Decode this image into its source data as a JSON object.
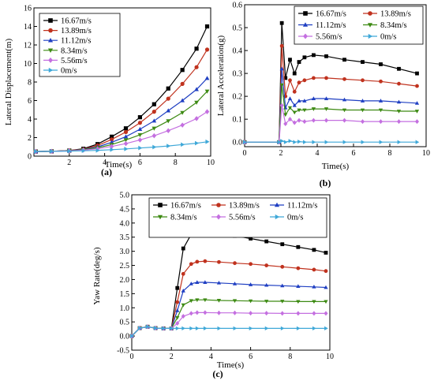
{
  "legend_labels": [
    "16.67m/s",
    "13.89m/s",
    "11.12m/s",
    "8.34m/s",
    "5.56m/s",
    "0m/s"
  ],
  "colors": {
    "16.67m/s": "#000000",
    "13.89m/s": "#c0321e",
    "11.12m/s": "#1f3fc2",
    "8.34m/s": "#3d8a13",
    "5.56m/s": "#c46fe0",
    "0m/s": "#3fa8d8"
  },
  "markers": {
    "16.67m/s": "square",
    "13.89m/s": "circle",
    "11.12m/s": "triangle-up",
    "8.34m/s": "triangle-down",
    "5.56m/s": "diamond",
    "0m/s": "triangle-right"
  },
  "chart_data": [
    {
      "type": "line",
      "panel_label": "(a)",
      "title": "",
      "xlabel": "Time(s)",
      "ylabel": "Lateral Displacement(m)",
      "xlim": [
        0,
        10
      ],
      "ylim": [
        0,
        16
      ],
      "xticks": [
        "2",
        "4",
        "6",
        "8",
        "10"
      ],
      "yticks": [
        "0",
        "2",
        "4",
        "6",
        "8",
        "10",
        "12",
        "14",
        "16"
      ],
      "legend_position": "top-left",
      "x": [
        0.1,
        1.0,
        2.0,
        2.8,
        3.6,
        4.4,
        5.2,
        6.0,
        6.8,
        7.6,
        8.4,
        9.2,
        9.8
      ],
      "series": [
        {
          "name": "16.67m/s",
          "values": [
            0.5,
            0.52,
            0.6,
            0.8,
            1.3,
            2.1,
            3.0,
            4.2,
            5.6,
            7.3,
            9.3,
            11.6,
            14.0
          ]
        },
        {
          "name": "13.89m/s",
          "values": [
            0.5,
            0.52,
            0.6,
            0.75,
            1.15,
            1.8,
            2.6,
            3.6,
            4.8,
            6.2,
            7.8,
            9.6,
            11.5
          ]
        },
        {
          "name": "11.12m/s",
          "values": [
            0.5,
            0.52,
            0.58,
            0.72,
            1.0,
            1.5,
            2.1,
            2.9,
            3.8,
            4.9,
            6.0,
            7.2,
            8.4
          ]
        },
        {
          "name": "8.34m/s",
          "values": [
            0.5,
            0.52,
            0.58,
            0.7,
            0.9,
            1.25,
            1.75,
            2.3,
            3.0,
            3.8,
            4.7,
            5.8,
            7.0
          ]
        },
        {
          "name": "5.56m/s",
          "values": [
            0.5,
            0.52,
            0.56,
            0.65,
            0.8,
            1.05,
            1.35,
            1.75,
            2.2,
            2.75,
            3.35,
            4.05,
            4.8
          ]
        },
        {
          "name": "0m/s",
          "values": [
            0.5,
            0.52,
            0.54,
            0.58,
            0.62,
            0.7,
            0.78,
            0.88,
            0.98,
            1.1,
            1.25,
            1.4,
            1.55
          ]
        }
      ]
    },
    {
      "type": "line",
      "panel_label": "(b)",
      "title": "",
      "xlabel": "Time(s)",
      "ylabel": "Lateral Acceleration(g)",
      "xlim": [
        0,
        10
      ],
      "ylim": [
        -0.02,
        0.6
      ],
      "xticks": [
        "0",
        "2",
        "4",
        "6",
        "8",
        "10"
      ],
      "yticks": [
        "0.0",
        "0.1",
        "0.2",
        "0.3",
        "0.4",
        "0.5",
        "0.6"
      ],
      "legend_position": "top-right",
      "x": [
        0,
        1.9,
        2.05,
        2.25,
        2.5,
        2.75,
        3.0,
        3.3,
        3.8,
        4.5,
        5.5,
        6.5,
        7.5,
        8.5,
        9.5
      ],
      "series": [
        {
          "name": "16.67m/s",
          "values": [
            0,
            0,
            0.52,
            0.28,
            0.36,
            0.3,
            0.35,
            0.37,
            0.38,
            0.375,
            0.36,
            0.35,
            0.34,
            0.32,
            0.3
          ]
        },
        {
          "name": "13.89m/s",
          "values": [
            0,
            0,
            0.42,
            0.2,
            0.27,
            0.22,
            0.26,
            0.27,
            0.28,
            0.28,
            0.275,
            0.27,
            0.265,
            0.255,
            0.245
          ]
        },
        {
          "name": "11.12m/s",
          "values": [
            0,
            0,
            0.32,
            0.15,
            0.19,
            0.16,
            0.18,
            0.18,
            0.19,
            0.19,
            0.185,
            0.18,
            0.18,
            0.175,
            0.17
          ]
        },
        {
          "name": "8.34m/s",
          "values": [
            0,
            0,
            0.25,
            0.12,
            0.15,
            0.13,
            0.14,
            0.14,
            0.145,
            0.145,
            0.14,
            0.14,
            0.14,
            0.135,
            0.135
          ]
        },
        {
          "name": "5.56m/s",
          "values": [
            0,
            0,
            0.16,
            0.08,
            0.1,
            0.085,
            0.095,
            0.09,
            0.095,
            0.095,
            0.095,
            0.09,
            0.09,
            0.09,
            0.09
          ]
        },
        {
          "name": "0m/s",
          "values": [
            0,
            0,
            0.005,
            0.0,
            0.005,
            0.0,
            0.002,
            0.0,
            0.0,
            0.0,
            0.0,
            0.0,
            0.0,
            0.0,
            0.0
          ]
        }
      ]
    },
    {
      "type": "line",
      "panel_label": "(c)",
      "title": "",
      "xlabel": "Time(s)",
      "ylabel": "Yaw Rate(deg/s)",
      "xlim": [
        0,
        10
      ],
      "ylim": [
        -0.5,
        5.0
      ],
      "xticks": [
        "0",
        "2",
        "4",
        "6",
        "8",
        "10"
      ],
      "yticks": [
        "-0.5",
        "0.0",
        "0.5",
        "1.0",
        "1.5",
        "2.0",
        "2.5",
        "3.0",
        "3.5",
        "4.0",
        "4.5",
        "5.0"
      ],
      "legend_position": "top",
      "x": [
        0.0,
        0.4,
        0.8,
        1.2,
        1.6,
        2.0,
        2.3,
        2.6,
        3.0,
        3.3,
        3.7,
        4.4,
        5.2,
        6.0,
        6.8,
        7.6,
        8.4,
        9.2,
        9.8
      ],
      "series": [
        {
          "name": "16.67m/s",
          "values": [
            0.0,
            0.28,
            0.33,
            0.28,
            0.27,
            0.27,
            1.7,
            3.1,
            3.6,
            3.7,
            3.68,
            3.6,
            3.55,
            3.45,
            3.35,
            3.25,
            3.15,
            3.05,
            2.95
          ]
        },
        {
          "name": "13.89m/s",
          "values": [
            0.0,
            0.28,
            0.33,
            0.28,
            0.27,
            0.27,
            1.2,
            2.2,
            2.55,
            2.63,
            2.65,
            2.62,
            2.58,
            2.55,
            2.5,
            2.45,
            2.4,
            2.35,
            2.3
          ]
        },
        {
          "name": "11.12m/s",
          "values": [
            0.0,
            0.28,
            0.33,
            0.28,
            0.27,
            0.27,
            0.9,
            1.6,
            1.85,
            1.9,
            1.9,
            1.88,
            1.85,
            1.82,
            1.8,
            1.78,
            1.76,
            1.74,
            1.72
          ]
        },
        {
          "name": "8.34m/s",
          "values": [
            0.0,
            0.28,
            0.33,
            0.28,
            0.27,
            0.27,
            0.65,
            1.1,
            1.25,
            1.28,
            1.28,
            1.26,
            1.25,
            1.24,
            1.23,
            1.23,
            1.22,
            1.22,
            1.22
          ]
        },
        {
          "name": "5.56m/s",
          "values": [
            0.0,
            0.28,
            0.33,
            0.28,
            0.27,
            0.27,
            0.45,
            0.7,
            0.8,
            0.83,
            0.83,
            0.82,
            0.82,
            0.81,
            0.81,
            0.8,
            0.8,
            0.8,
            0.8
          ]
        },
        {
          "name": "0m/s",
          "values": [
            0.0,
            0.28,
            0.33,
            0.28,
            0.27,
            0.27,
            0.27,
            0.27,
            0.27,
            0.27,
            0.27,
            0.27,
            0.27,
            0.27,
            0.27,
            0.27,
            0.27,
            0.27,
            0.27
          ]
        }
      ]
    }
  ]
}
